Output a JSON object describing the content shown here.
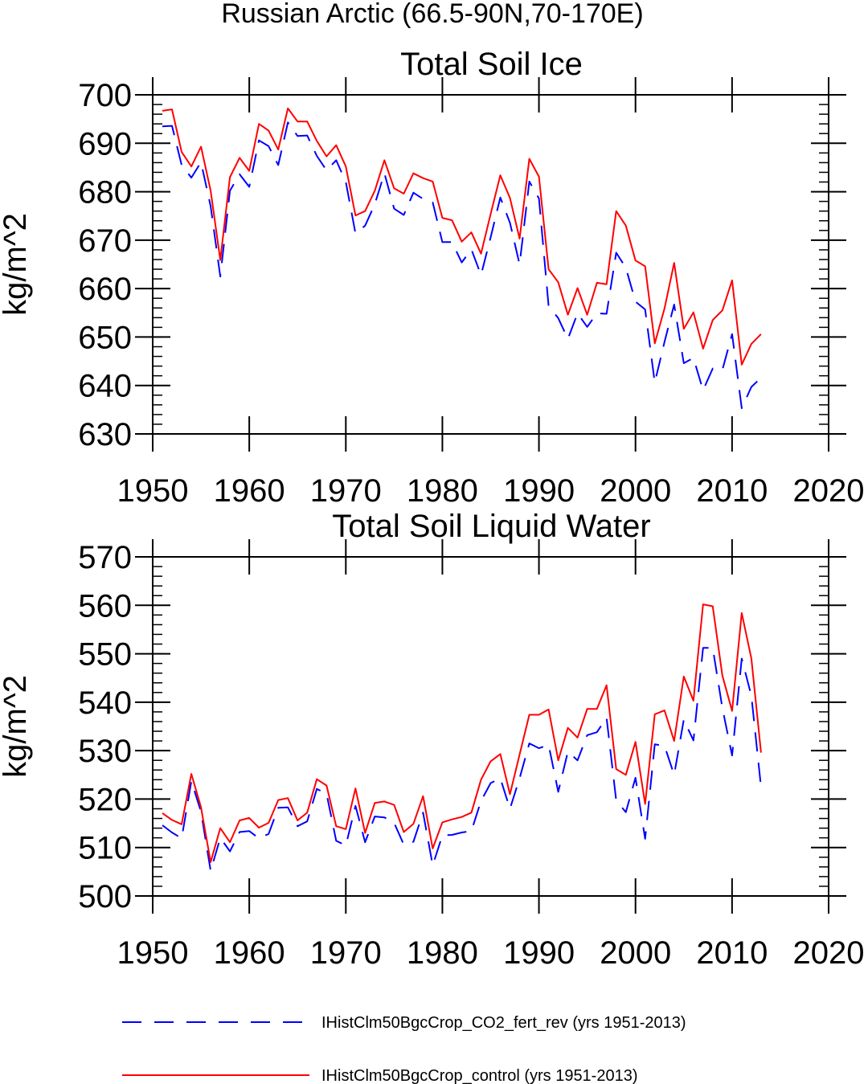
{
  "figure": {
    "title": "Russian Arctic (66.5-90N,70-170E)"
  },
  "colors": {
    "control": "#ff0000",
    "co2_fert_rev": "#0000ff",
    "frame": "#000000"
  },
  "legend": {
    "placement": "bottom",
    "entries": [
      {
        "series_key": "co2_fert_rev",
        "label": "IHistClm50BgcCrop_CO2_fert_rev (yrs 1951-2013)",
        "style": "dashed"
      },
      {
        "series_key": "control",
        "label": "IHistClm50BgcCrop_control (yrs 1951-2013)",
        "style": "solid"
      }
    ]
  },
  "chart_data": [
    {
      "type": "line",
      "title": "Total Soil Ice",
      "xlabel": "",
      "ylabel": "kg/m^2",
      "xlim": [
        1950,
        2020
      ],
      "ylim": [
        630,
        700
      ],
      "xticks": [
        1950,
        1960,
        1970,
        1980,
        1990,
        2000,
        2010,
        2020
      ],
      "yticks": [
        630,
        640,
        650,
        660,
        670,
        680,
        690,
        700
      ],
      "grid": false,
      "x": [
        1951,
        1952,
        1953,
        1954,
        1955,
        1956,
        1957,
        1958,
        1959,
        1960,
        1961,
        1962,
        1963,
        1964,
        1965,
        1966,
        1967,
        1968,
        1969,
        1970,
        1971,
        1972,
        1973,
        1974,
        1975,
        1976,
        1977,
        1978,
        1979,
        1980,
        1981,
        1982,
        1983,
        1984,
        1985,
        1986,
        1987,
        1988,
        1989,
        1990,
        1991,
        1992,
        1993,
        1994,
        1995,
        1996,
        1997,
        1998,
        1999,
        2000,
        2001,
        2002,
        2003,
        2004,
        2005,
        2006,
        2007,
        2008,
        2009,
        2010,
        2011,
        2012,
        2013
      ],
      "series": [
        {
          "key": "control",
          "name": "IHistClm50BgcCrop_control (yrs 1951-2013)",
          "values": [
            696.7,
            697.0,
            688.2,
            685.2,
            689.3,
            680.2,
            665.9,
            683.0,
            687.0,
            684.3,
            694.0,
            692.6,
            688.7,
            697.2,
            694.5,
            694.5,
            690.5,
            687.3,
            689.6,
            685.2,
            675.1,
            676.0,
            680.2,
            686.5,
            680.7,
            679.6,
            683.8,
            682.8,
            682.1,
            674.6,
            674.1,
            669.7,
            671.6,
            667.2,
            675.4,
            683.4,
            678.7,
            670.3,
            686.8,
            683.1,
            664.0,
            661.3,
            654.6,
            660.1,
            654.6,
            661.2,
            660.9,
            676.0,
            673.0,
            665.8,
            664.6,
            648.7,
            655.9,
            665.3,
            651.7,
            655.1,
            647.6,
            653.5,
            655.5,
            661.7,
            644.3,
            648.6,
            650.6
          ]
        },
        {
          "key": "co2_fert_rev",
          "name": "IHistClm50BgcCrop_CO2_fert_rev (yrs 1951-2013)",
          "values": [
            693.5,
            693.6,
            685.5,
            682.9,
            686.1,
            677.0,
            662.5,
            680.2,
            683.6,
            681.0,
            690.6,
            689.4,
            685.5,
            694.3,
            691.5,
            691.6,
            687.4,
            684.4,
            686.5,
            682.0,
            671.4,
            673.0,
            677.4,
            683.8,
            676.5,
            675.2,
            679.8,
            678.5,
            677.8,
            669.6,
            669.6,
            665.4,
            668.1,
            662.8,
            670.6,
            678.8,
            673.6,
            665.0,
            682.1,
            678.6,
            656.4,
            653.9,
            649.6,
            654.9,
            652.1,
            654.9,
            654.8,
            667.4,
            664.3,
            657.3,
            655.7,
            640.6,
            649.0,
            656.7,
            644.6,
            645.7,
            639.0,
            643.5,
            643.2,
            650.6,
            635.3,
            639.7,
            641.6
          ]
        }
      ]
    },
    {
      "type": "line",
      "title": "Total Soil Liquid Water",
      "xlabel": "",
      "ylabel": "kg/m^2",
      "xlim": [
        1950,
        2020
      ],
      "ylim": [
        500,
        570
      ],
      "xticks": [
        1950,
        1960,
        1970,
        1980,
        1990,
        2000,
        2010,
        2020
      ],
      "yticks": [
        500,
        510,
        520,
        530,
        540,
        550,
        560,
        570
      ],
      "grid": false,
      "x": [
        1951,
        1952,
        1953,
        1954,
        1955,
        1956,
        1957,
        1958,
        1959,
        1960,
        1961,
        1962,
        1963,
        1964,
        1965,
        1966,
        1967,
        1968,
        1969,
        1970,
        1971,
        1972,
        1973,
        1974,
        1975,
        1976,
        1977,
        1978,
        1979,
        1980,
        1981,
        1982,
        1983,
        1984,
        1985,
        1986,
        1987,
        1988,
        1989,
        1990,
        1991,
        1992,
        1993,
        1994,
        1995,
        1996,
        1997,
        1998,
        1999,
        2000,
        2001,
        2002,
        2003,
        2004,
        2005,
        2006,
        2007,
        2008,
        2009,
        2010,
        2011,
        2012,
        2013
      ],
      "series": [
        {
          "key": "control",
          "name": "IHistClm50BgcCrop_control (yrs 1951-2013)",
          "values": [
            517.1,
            515.7,
            514.8,
            525.2,
            518.3,
            507.0,
            514.0,
            511.1,
            515.6,
            516.1,
            514.1,
            515.1,
            519.8,
            520.2,
            515.6,
            517.2,
            524.1,
            522.8,
            514.4,
            513.8,
            522.2,
            513.0,
            519.2,
            519.5,
            518.8,
            513.2,
            514.9,
            520.6,
            509.8,
            515.2,
            515.8,
            516.3,
            517.2,
            524.0,
            527.8,
            529.3,
            521.0,
            529.2,
            537.4,
            537.4,
            538.5,
            528.0,
            534.7,
            532.7,
            538.6,
            538.6,
            543.5,
            526.2,
            525.0,
            531.8,
            519.0,
            537.5,
            538.3,
            532.0,
            545.3,
            540.3,
            560.2,
            559.8,
            545.5,
            538.2,
            558.4,
            549.0,
            529.6
          ]
        },
        {
          "key": "co2_fert_rev",
          "name": "IHistClm50BgcCrop_CO2_fert_rev (yrs 1951-2013)",
          "values": [
            514.6,
            513.1,
            511.9,
            523.7,
            517.4,
            505.2,
            512.0,
            509.2,
            513.2,
            513.4,
            511.9,
            512.8,
            518.2,
            518.3,
            514.4,
            515.4,
            522.1,
            521.1,
            511.4,
            510.4,
            518.6,
            511.1,
            516.4,
            516.2,
            515.1,
            510.6,
            511.2,
            517.2,
            506.3,
            512.5,
            512.6,
            513.1,
            513.4,
            519.6,
            523.3,
            524.3,
            518.0,
            524.3,
            531.5,
            530.5,
            531.2,
            521.5,
            529.8,
            528.0,
            533.2,
            533.8,
            536.8,
            519.7,
            517.3,
            524.4,
            511.8,
            531.3,
            531.0,
            525.0,
            536.4,
            532.1,
            551.2,
            551.2,
            538.8,
            529.0,
            549.0,
            541.3,
            522.5
          ]
        }
      ]
    }
  ]
}
